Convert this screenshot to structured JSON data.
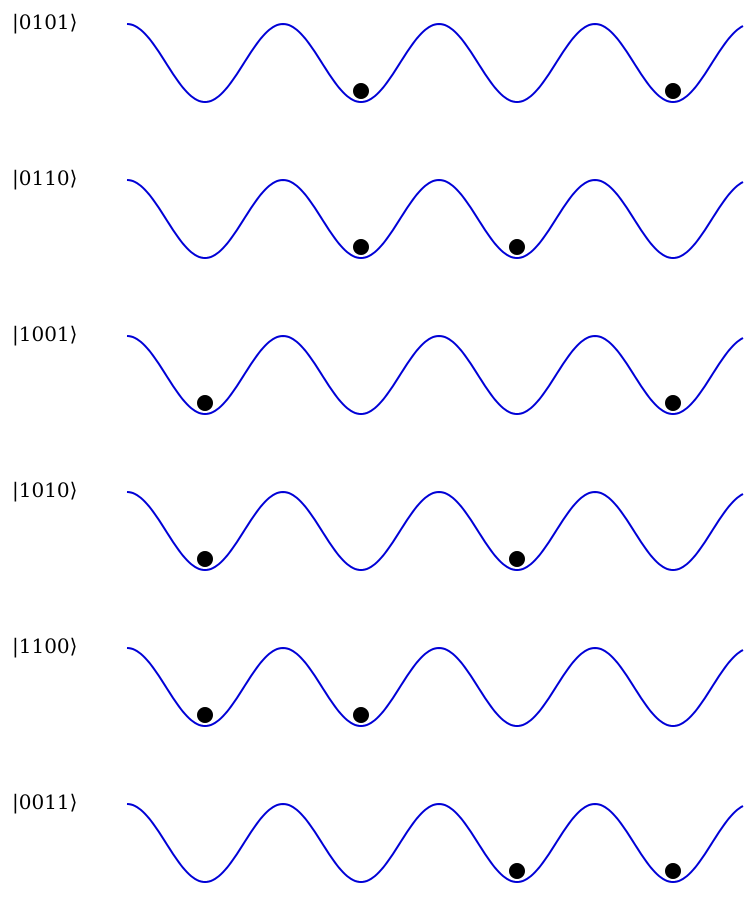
{
  "colors": {
    "potential": "#0000d6",
    "particle": "#000000",
    "text": "#000000"
  },
  "rows": [
    {
      "label": "|0101⟩",
      "occupation": [
        0,
        1,
        0,
        1
      ]
    },
    {
      "label": "|0110⟩",
      "occupation": [
        0,
        1,
        1,
        0
      ]
    },
    {
      "label": "|1001⟩",
      "occupation": [
        1,
        0,
        0,
        1
      ]
    },
    {
      "label": "|1010⟩",
      "occupation": [
        1,
        0,
        1,
        0
      ]
    },
    {
      "label": "|1100⟩",
      "occupation": [
        1,
        1,
        0,
        0
      ]
    },
    {
      "label": "|0011⟩",
      "occupation": [
        0,
        0,
        1,
        1
      ]
    }
  ]
}
